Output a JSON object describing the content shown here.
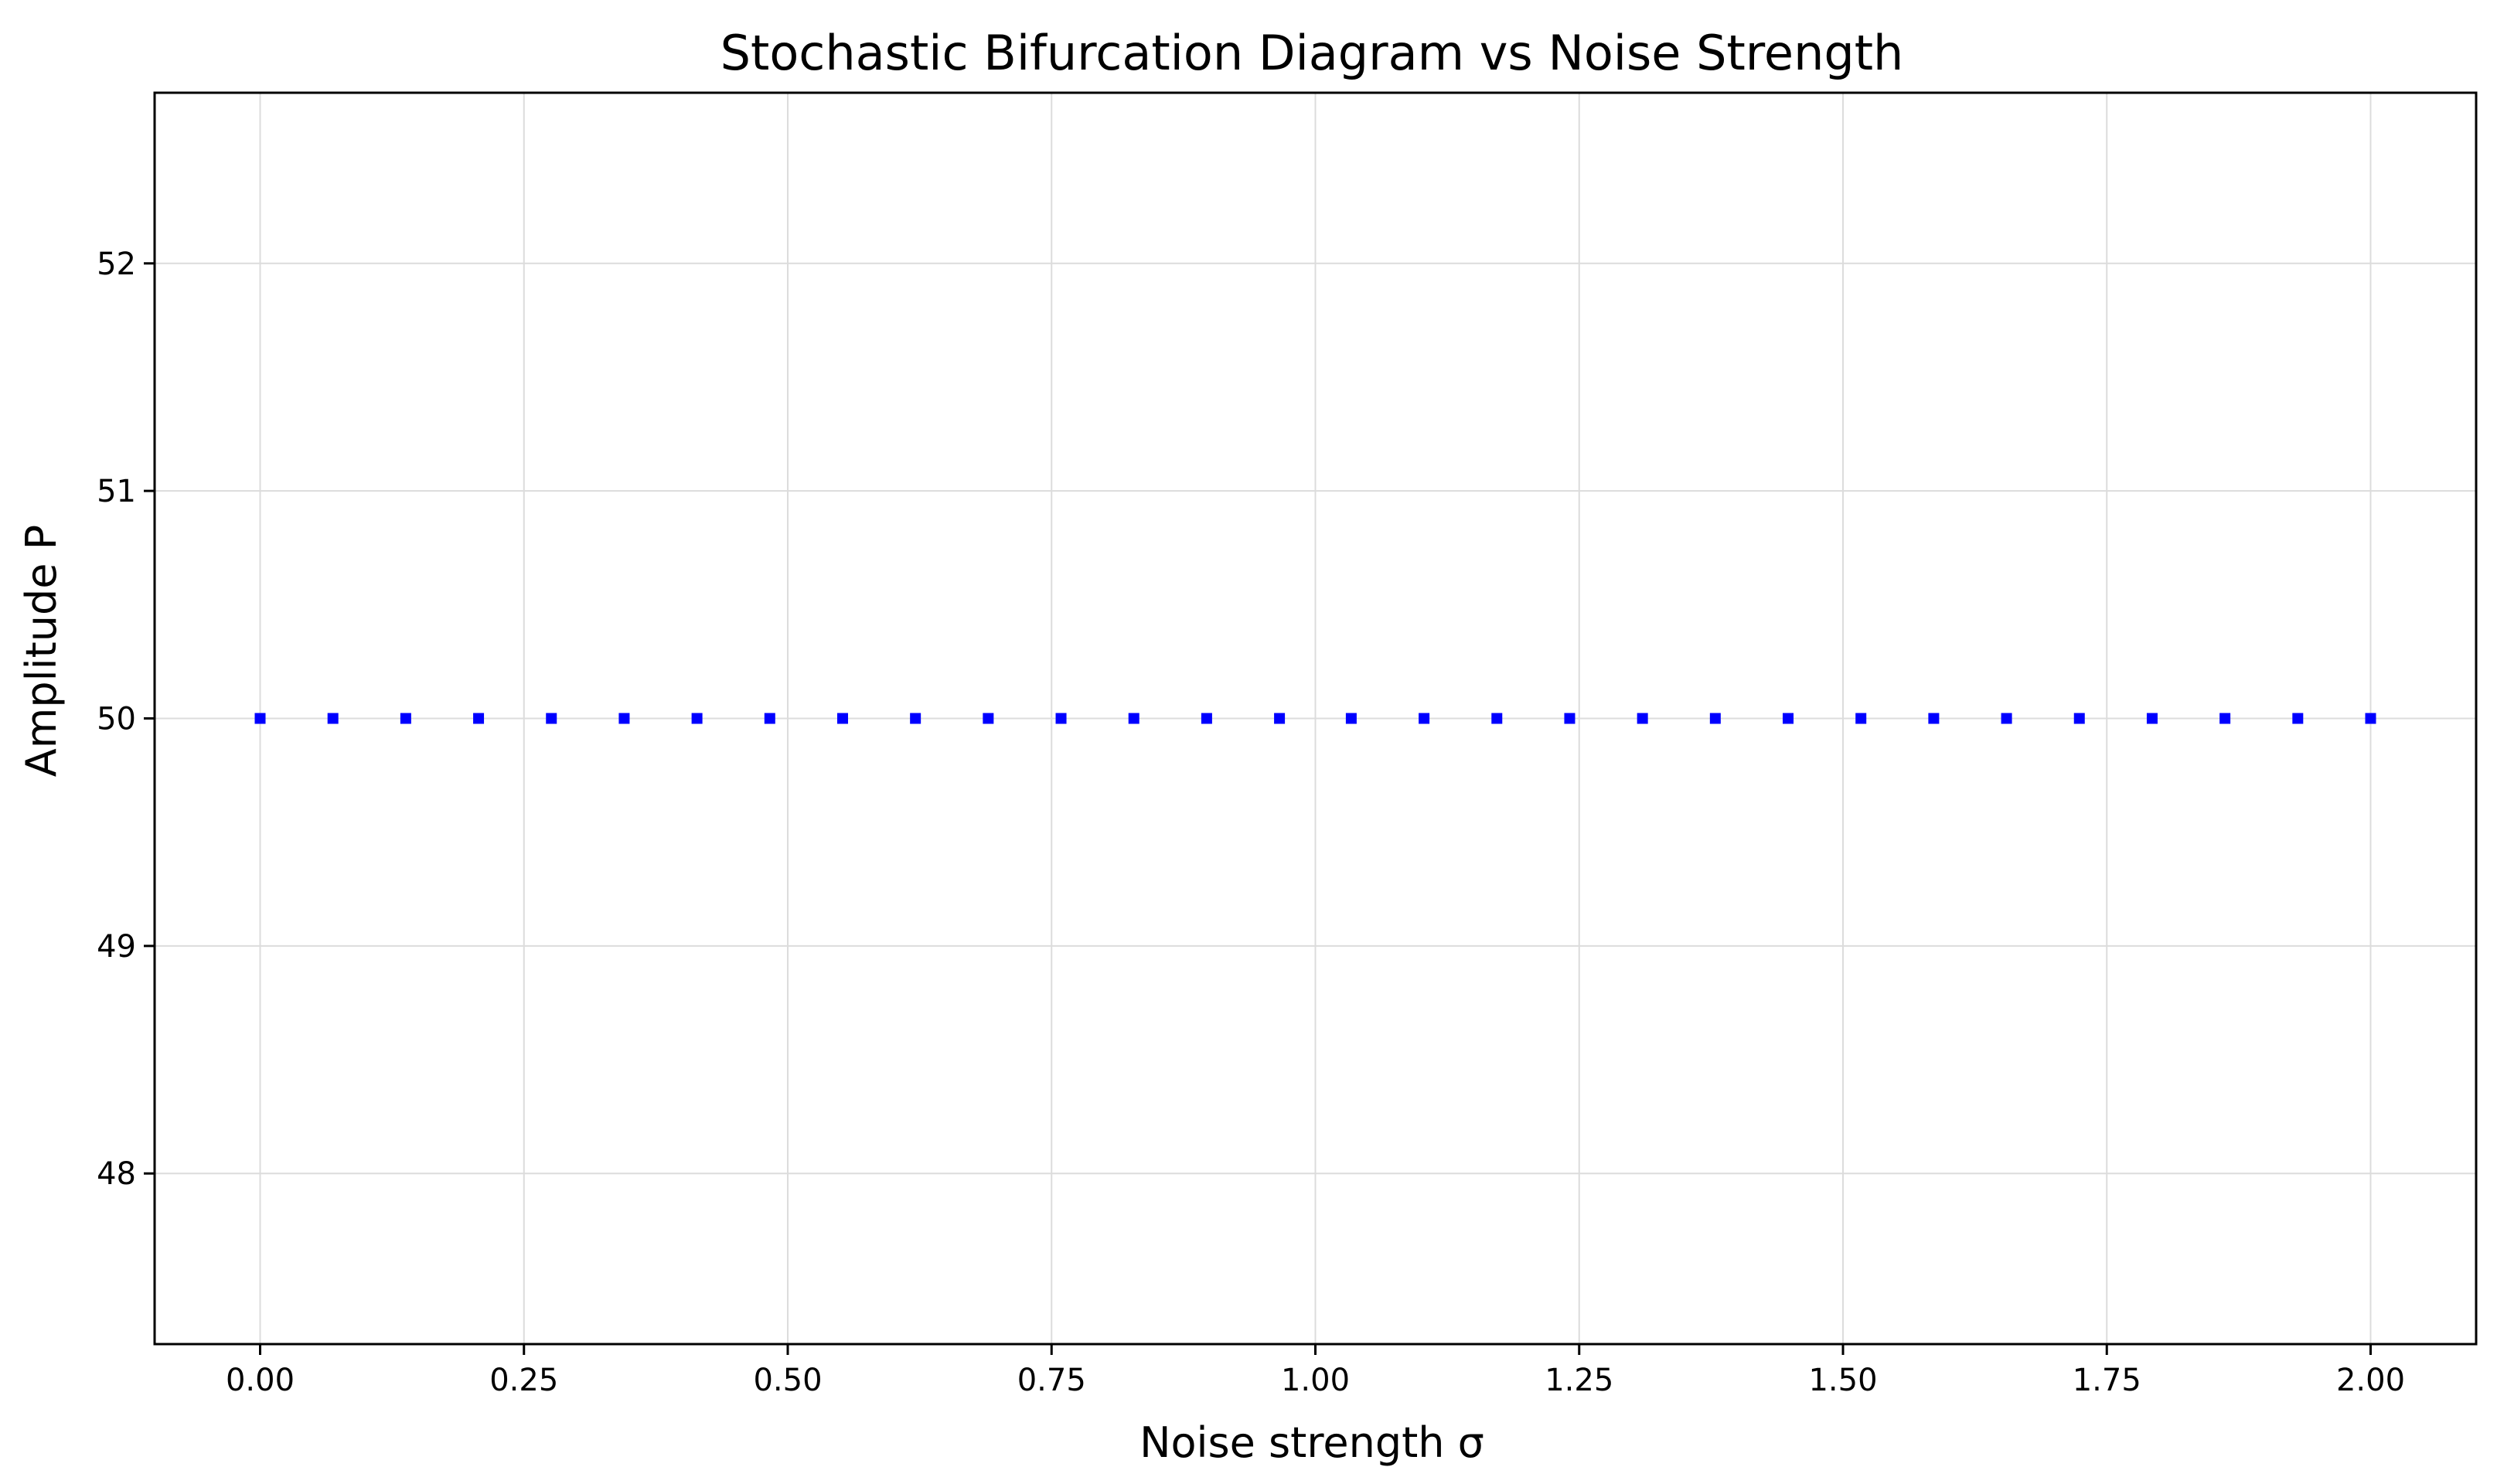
{
  "chart_data": {
    "type": "scatter",
    "title": "Stochastic Bifurcation Diagram vs Noise Strength",
    "xlabel": "Noise strength σ",
    "ylabel": "Amplitude P",
    "xlim": [
      -0.1,
      2.1
    ],
    "ylim": [
      47.25,
      52.75
    ],
    "xticks": [
      0.0,
      0.25,
      0.5,
      0.75,
      1.0,
      1.25,
      1.5,
      1.75,
      2.0
    ],
    "xtick_labels": [
      "0.00",
      "0.25",
      "0.50",
      "0.75",
      "1.00",
      "1.25",
      "1.50",
      "1.75",
      "2.00"
    ],
    "yticks": [
      48,
      49,
      50,
      51,
      52
    ],
    "ytick_labels": [
      "48",
      "49",
      "50",
      "51",
      "52"
    ],
    "grid": true,
    "legend": "none",
    "series": [
      {
        "color": "#0000ff",
        "marker": "square",
        "x": [
          0.0,
          0.069,
          0.138,
          0.207,
          0.276,
          0.345,
          0.414,
          0.483,
          0.552,
          0.621,
          0.69,
          0.759,
          0.828,
          0.897,
          0.966,
          1.034,
          1.103,
          1.172,
          1.241,
          1.31,
          1.379,
          1.448,
          1.517,
          1.586,
          1.655,
          1.724,
          1.793,
          1.862,
          1.931,
          2.0
        ],
        "y": [
          50,
          50,
          50,
          50,
          50,
          50,
          50,
          50,
          50,
          50,
          50,
          50,
          50,
          50,
          50,
          50,
          50,
          50,
          50,
          50,
          50,
          50,
          50,
          50,
          50,
          50,
          50,
          50,
          50,
          50
        ]
      }
    ]
  }
}
